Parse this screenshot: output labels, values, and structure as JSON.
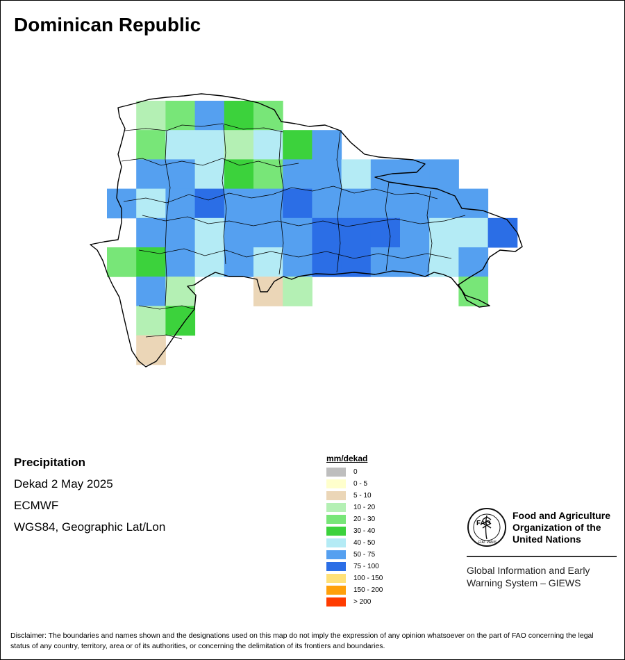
{
  "map": {
    "title": "Dominican Republic",
    "variable": "Precipitation",
    "period": "Dekad 2 May 2025",
    "source": "ECMWF",
    "projection": "WGS84, Geographic Lat/Lon",
    "legend_unit": "mm/dekad",
    "legend": [
      {
        "label": "0",
        "color": "#bebebe"
      },
      {
        "label": "0 - 5",
        "color": "#ffffcc"
      },
      {
        "label": "5 - 10",
        "color": "#ebd6b7"
      },
      {
        "label": "10 - 20",
        "color": "#b4f0b4"
      },
      {
        "label": "20 - 30",
        "color": "#78e678"
      },
      {
        "label": "30 - 40",
        "color": "#3cd23c"
      },
      {
        "label": "40 - 50",
        "color": "#b4ebf5"
      },
      {
        "label": "50 - 75",
        "color": "#55a0f0"
      },
      {
        "label": "75 - 100",
        "color": "#2b6ee6"
      },
      {
        "label": "100 - 150",
        "color": "#ffe178"
      },
      {
        "label": "150 - 200",
        "color": "#ffa00a"
      },
      {
        "label": "> 200",
        "color": "#ff3c00"
      }
    ]
  },
  "org": {
    "logo_text": "FAO",
    "logo_motto": "FIAT PANIS",
    "name_line1": "Food and Agriculture",
    "name_line2": "Organization of the",
    "name_line3": "United Nations",
    "system_line1": "Global Information and Early",
    "system_line2": "Warning System – GIEWS"
  },
  "disclaimer": "Disclaimer: The boundaries and names shown and the designations used on this map do not imply the expression of any opinion whatsoever on the part of FAO concerning the legal status of any country, territory, area or of its authorities, or concerning the delimitation of its frontiers and boundaries."
}
